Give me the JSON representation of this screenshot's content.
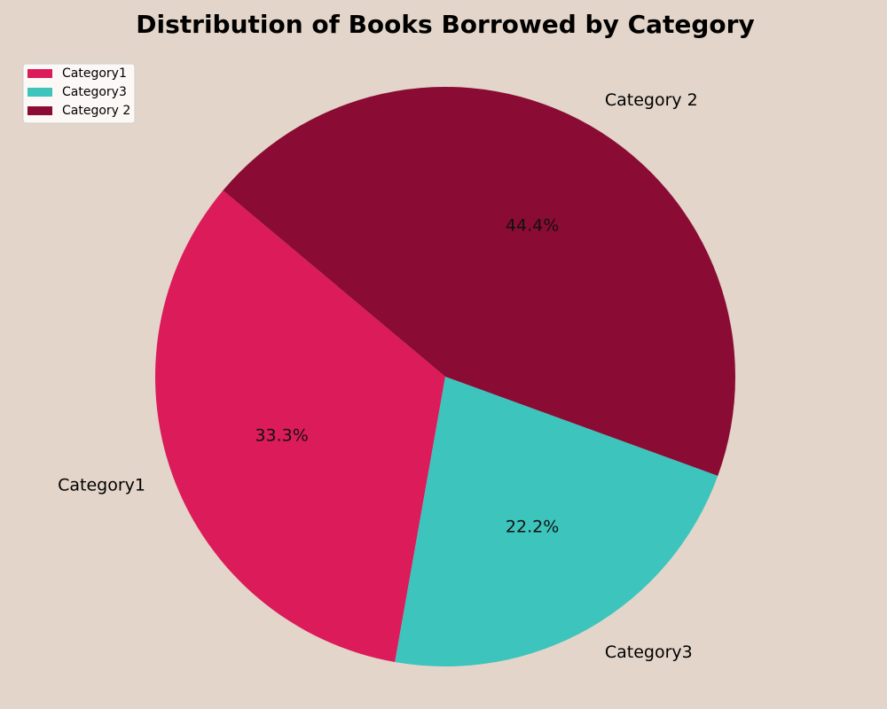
{
  "chart_data": {
    "type": "pie",
    "title": "Distribution of Books Borrowed by Category",
    "start_angle_deg": 140,
    "direction": "counterclockwise",
    "slices": [
      {
        "label": "Category1",
        "value": 33.3,
        "pct_label": "33.3%",
        "color": "#db1b5a"
      },
      {
        "label": "Category3",
        "value": 22.2,
        "pct_label": "22.2%",
        "color": "#3cc4bd"
      },
      {
        "label": "Category 2",
        "value": 44.4,
        "pct_label": "44.4%",
        "color": "#8a0b33"
      }
    ],
    "legend": {
      "placement": "top-left",
      "entries": [
        "Category1",
        "Category3",
        "Category 2"
      ]
    }
  }
}
